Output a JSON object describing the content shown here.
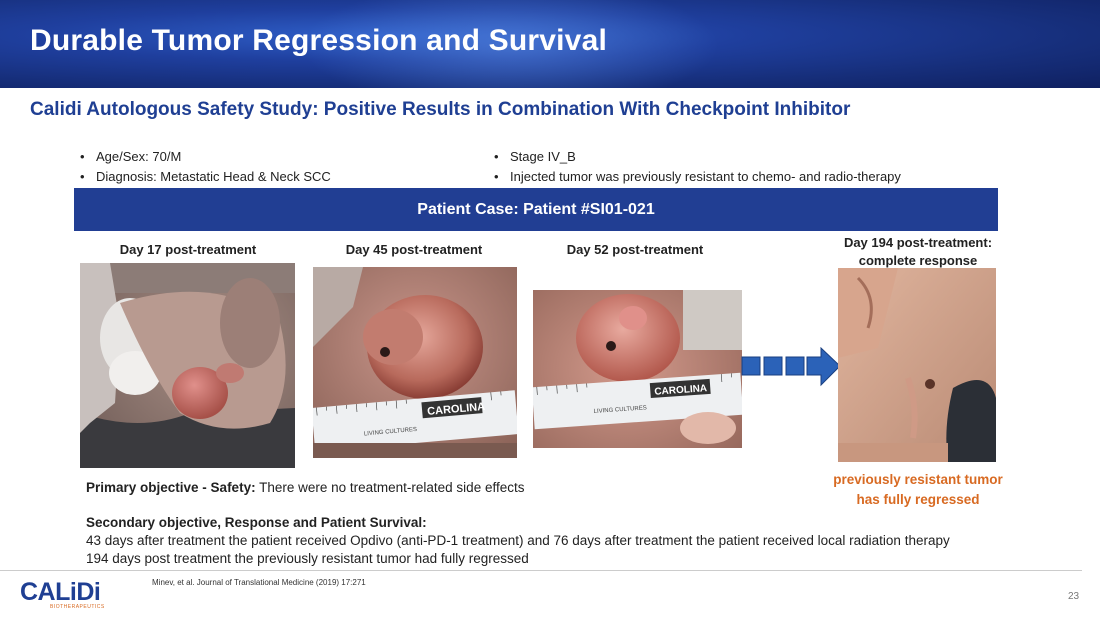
{
  "header": {
    "title": "Durable Tumor Regression and Survival"
  },
  "subtitle": "Calidi Autologous Safety Study: Positive Results in Combination With Checkpoint Inhibitor",
  "bullets_left": [
    "Age/Sex: 70/M",
    "Diagnosis: Metastatic Head & Neck SCC"
  ],
  "bullets_right": [
    "Stage IV_B",
    "Injected tumor was previously resistant to chemo- and radio-therapy"
  ],
  "case_bar": "Patient Case:  Patient #SI01-021",
  "panels": [
    {
      "label": "Day 17 post-treatment"
    },
    {
      "label": "Day 45 post-treatment"
    },
    {
      "label": "Day 52 post-treatment"
    },
    {
      "label_line1": "Day 194 post-treatment:",
      "label_line2": "complete response"
    }
  ],
  "ruler_text": "CAROLINA",
  "ruler_sub": "LIVING CULTURES",
  "note": {
    "line1": "previously resistant tumor",
    "line2": "has fully regressed"
  },
  "primary": {
    "label": "Primary objective - Safety:",
    "text": " There were no treatment-related side effects"
  },
  "secondary": {
    "label": "Secondary objective, Response and Patient Survival:",
    "line1": "43 days after treatment the patient received Opdivo (anti-PD-1 treatment) and 76 days after treatment the patient received local radiation therapy",
    "line2": "194 days post treatment the previously resistant tumor had fully regressed"
  },
  "footer": {
    "citation": "Minev, et al. Journal of Translational Medicine (2019) 17:271",
    "page": "23",
    "logo": "CALiDi",
    "logo_sub": "BIOTHERAPEUTICS"
  },
  "colors": {
    "brand_blue": "#213e93",
    "accent_orange": "#d86a22"
  }
}
